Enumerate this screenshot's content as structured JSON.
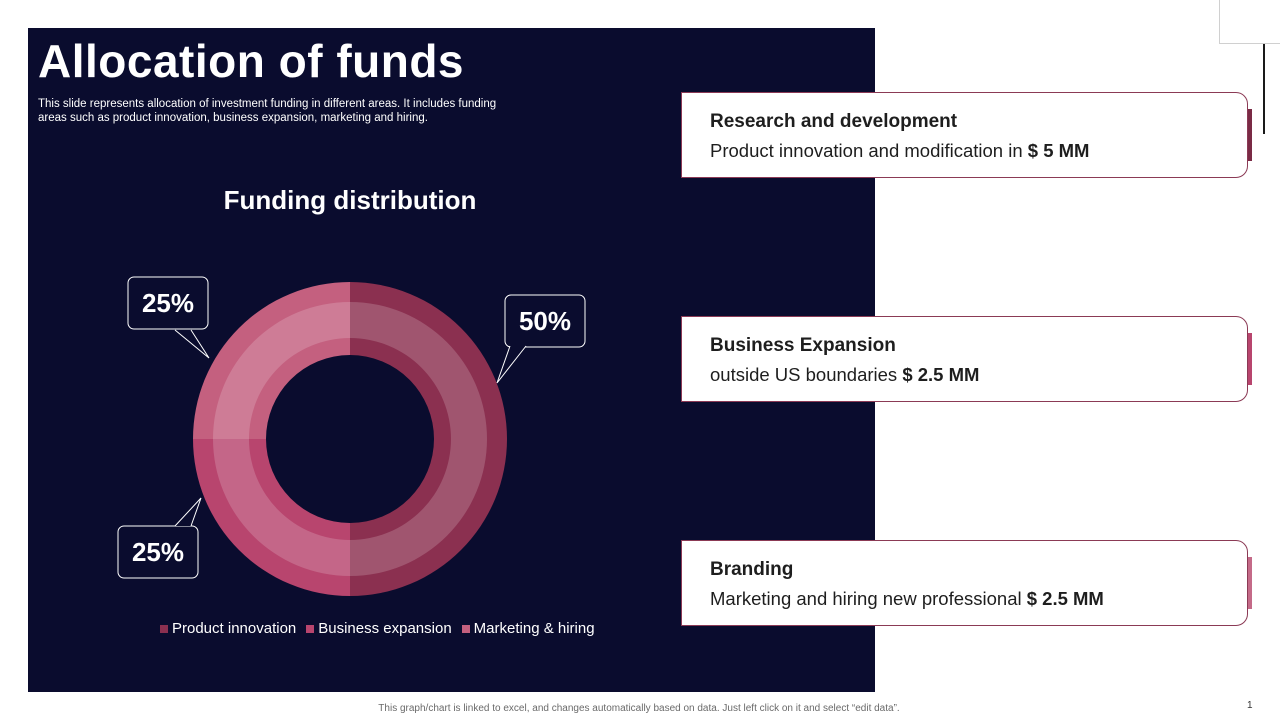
{
  "slide": {
    "title": "Allocation of funds",
    "subtitle": "This slide represents allocation of investment funding in different areas. It includes funding areas such as product innovation, business expansion, marketing and hiring.",
    "footer": "This graph/chart is linked to excel, and changes automatically based on data. Just left click on it and select “edit data”.",
    "page_number": "1"
  },
  "chart_data": {
    "type": "pie",
    "title": "Funding distribution",
    "categories": [
      "Product innovation",
      "Business expansion",
      "Marketing & hiring"
    ],
    "values": [
      50,
      25,
      25
    ],
    "data_labels": [
      "50%",
      "25%",
      "25%"
    ],
    "colors": [
      "#8b3050",
      "#b8456e",
      "#c4607f"
    ],
    "legend_position": "bottom"
  },
  "cards": [
    {
      "heading": "Research and development",
      "text": "Product innovation and modification in ",
      "amount": "$ 5 MM",
      "tab_color": "#7a2a45"
    },
    {
      "heading": "Business Expansion",
      "text": "outside US boundaries ",
      "amount": "$ 2.5 MM",
      "tab_color": "#b8456e"
    },
    {
      "heading": "Branding",
      "text": "Marketing and hiring new professional ",
      "amount": "$ 2.5 MM",
      "tab_color": "#c46a88"
    }
  ]
}
